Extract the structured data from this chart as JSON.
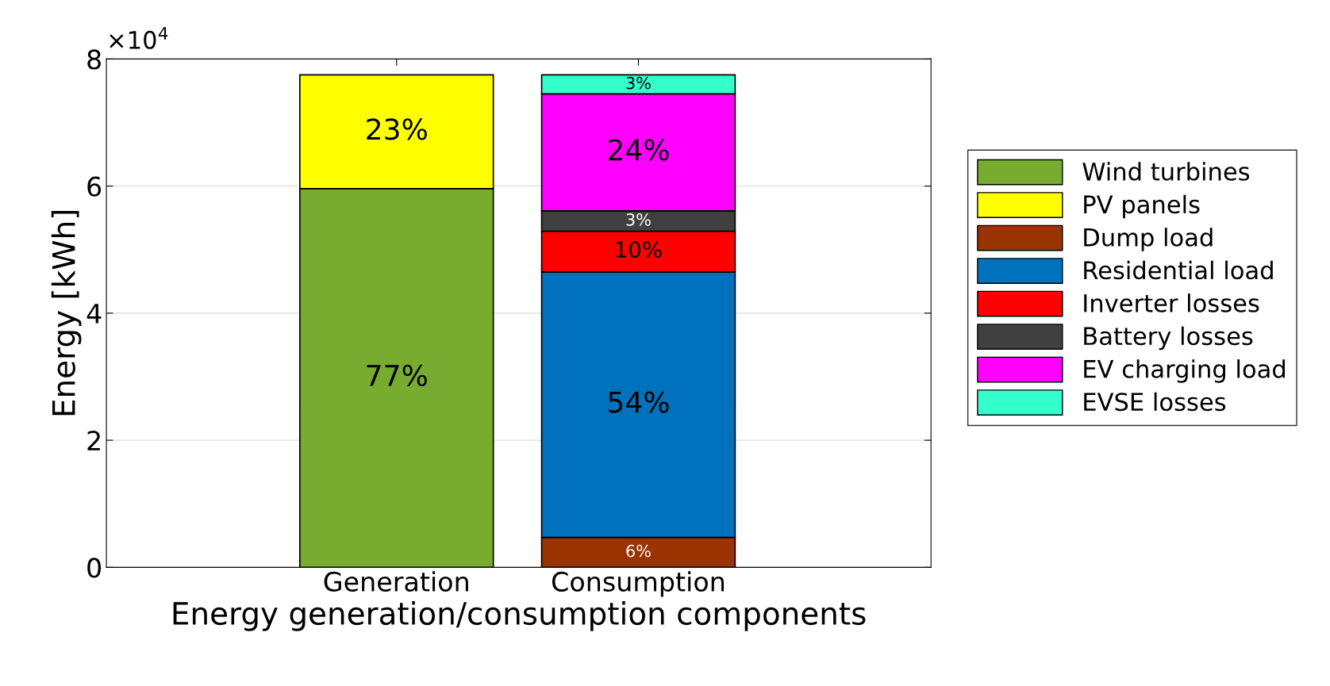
{
  "chart_data": {
    "type": "bar",
    "stacked": true,
    "xlabel": "Energy generation/consumption components",
    "ylabel": "Energy [kWh]",
    "categories": [
      "Generation",
      "Consumption"
    ],
    "series": [
      {
        "name": "Wind turbines",
        "color": "#77ac30",
        "values": [
          5.96,
          null
        ]
      },
      {
        "name": "PV panels",
        "color": "#ffff00",
        "values": [
          1.79,
          null
        ]
      },
      {
        "name": "Dump load",
        "color": "#993300",
        "values": [
          null,
          0.47
        ]
      },
      {
        "name": "Residential load",
        "color": "#0072bd",
        "values": [
          null,
          4.18
        ]
      },
      {
        "name": "Inverter losses",
        "color": "#ff0000",
        "values": [
          null,
          0.64
        ]
      },
      {
        "name": "Battery losses",
        "color": "#404040",
        "values": [
          null,
          0.32
        ]
      },
      {
        "name": "EV charging load",
        "color": "#ff00ff",
        "values": [
          null,
          1.84
        ]
      },
      {
        "name": "EVSE losses",
        "color": "#33ffcc",
        "values": [
          null,
          0.3
        ]
      }
    ],
    "ylim": [
      0,
      8
    ],
    "yticks": [
      0,
      2,
      4,
      6,
      8
    ],
    "annotations": [
      "×10$^{4}$",
      "77%",
      "23%",
      "6%",
      "54%",
      "10%",
      "3%",
      "24%",
      "3%"
    ],
    "grid": "y",
    "legend": "right"
  }
}
